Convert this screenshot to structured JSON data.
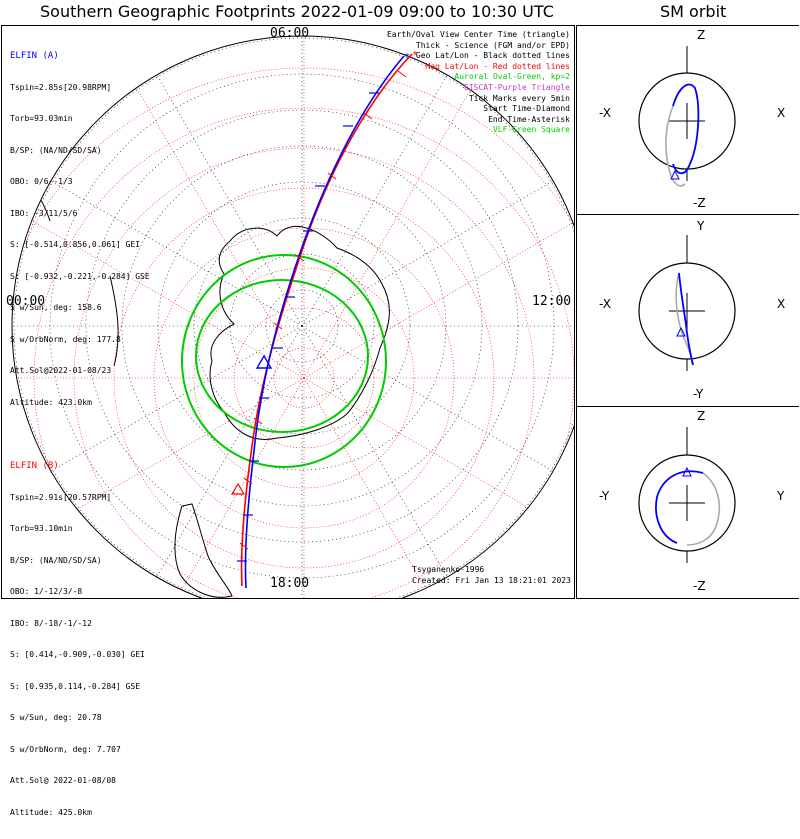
{
  "title": "Southern Geographic Footprints 2022-01-09 09:00 to 10:30 UTC",
  "side_title": "SM orbit",
  "colors": {
    "elfin_a": "#0000ff",
    "elfin_b": "#ff0000",
    "auroral_oval": "#00cc00",
    "geo_grid": "#000000",
    "mag_grid": "#ff0000",
    "eiscat": "#cc33cc",
    "vlf": "#00cc00",
    "orbit_gray": "#aaaaaa"
  },
  "clock_labels": {
    "top": "06:00",
    "left": "00:00",
    "right": "12:00",
    "bottom": "18:00"
  },
  "elfin_a": {
    "header": "ELFIN (A)",
    "lines": [
      "Tspin=2.85s[20.98RPM]",
      "Torb=93.03min",
      "B/SP: (NA/ND/SD/SA)",
      "OBO: 0/6/-1/3",
      "IBO: -3/11/5/6",
      "S: [-0.514,0.856,0.061] GEI",
      "S: [-0.932,-0.221,-0.284] GSE",
      "S w/Sun, deg: 158.6",
      "S w/OrbNorm, deg: 177.8",
      "Att.Sol@2022-01-08/23",
      "Altitude: 423.0km"
    ]
  },
  "elfin_b": {
    "header": "ELFIN (B)",
    "lines": [
      "Tspin=2.91s[20.57RPM]",
      "Torb=93.10min",
      "B/SP: (NA/ND/SD/SA)",
      "OBO: 1/-12/3/-8",
      "IBO: 8/-18/-1/-12",
      "S: [0.414,-0.909,-0.030] GEI",
      "S: [0.935,0.114,-0.284] GSE",
      "S w/Sun, deg: 20.78",
      "S w/OrbNorm, deg: 7.707",
      "Att.Sol@ 2022-01-08/08",
      "Altitude: 425.0km"
    ]
  },
  "legend": [
    "Earth/Oval View Center Time (triangle)",
    "Thick - Science (FGM and/or EPD)",
    "Geo Lat/Lon - Black dotted lines",
    "Mag Lat/Lon - Red dotted lines",
    "Auroral Oval-Green, kp=2",
    "EISCAT-Purple Triangle",
    "Tick Marks every 5min",
    "Start Time-Diamond",
    "End Time-Asterisk",
    "VLF-Green Square"
  ],
  "credits": [
    "Tsyganenko-1996",
    "Created: Fri Jan 13 18:21:01 2023"
  ],
  "orbit_panels": [
    {
      "name": "xz",
      "top": "Z",
      "bottom": "-Z",
      "left": "-X",
      "right": "X"
    },
    {
      "name": "xy",
      "top": "Y",
      "bottom": "-Y",
      "left": "-X",
      "right": "X"
    },
    {
      "name": "yz",
      "top": "Z",
      "bottom": "-Z",
      "left": "-Y",
      "right": "Y"
    }
  ]
}
